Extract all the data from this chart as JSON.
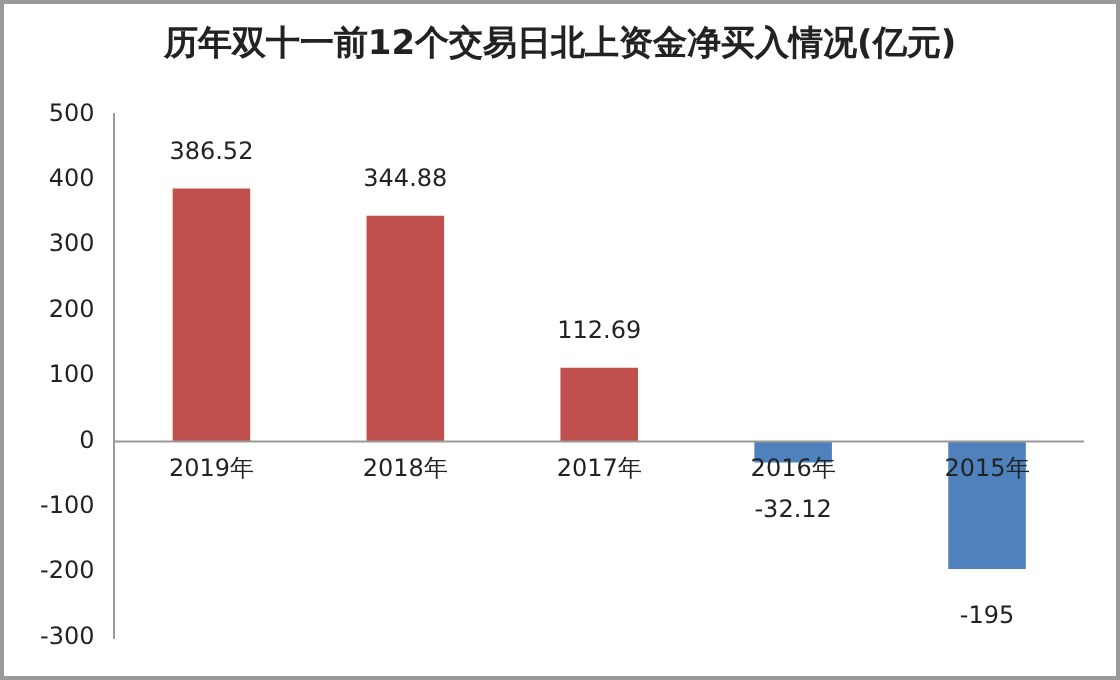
{
  "chart_data": {
    "type": "bar",
    "title": "历年双十一前12个交易日北上资金净买入情况(亿元)",
    "categories": [
      "2019年",
      "2018年",
      "2017年",
      "2016年",
      "2015年"
    ],
    "values": [
      386.52,
      344.88,
      112.69,
      -32.12,
      -195
    ],
    "colors": [
      "#c0504d",
      "#c0504d",
      "#c0504d",
      "#4f81bd",
      "#4f81bd"
    ],
    "ylim": [
      -300,
      500
    ],
    "yticks": [
      -300,
      -200,
      -100,
      0,
      100,
      200,
      300,
      400,
      500
    ],
    "grid": false,
    "legend": false,
    "data_labels": true
  }
}
